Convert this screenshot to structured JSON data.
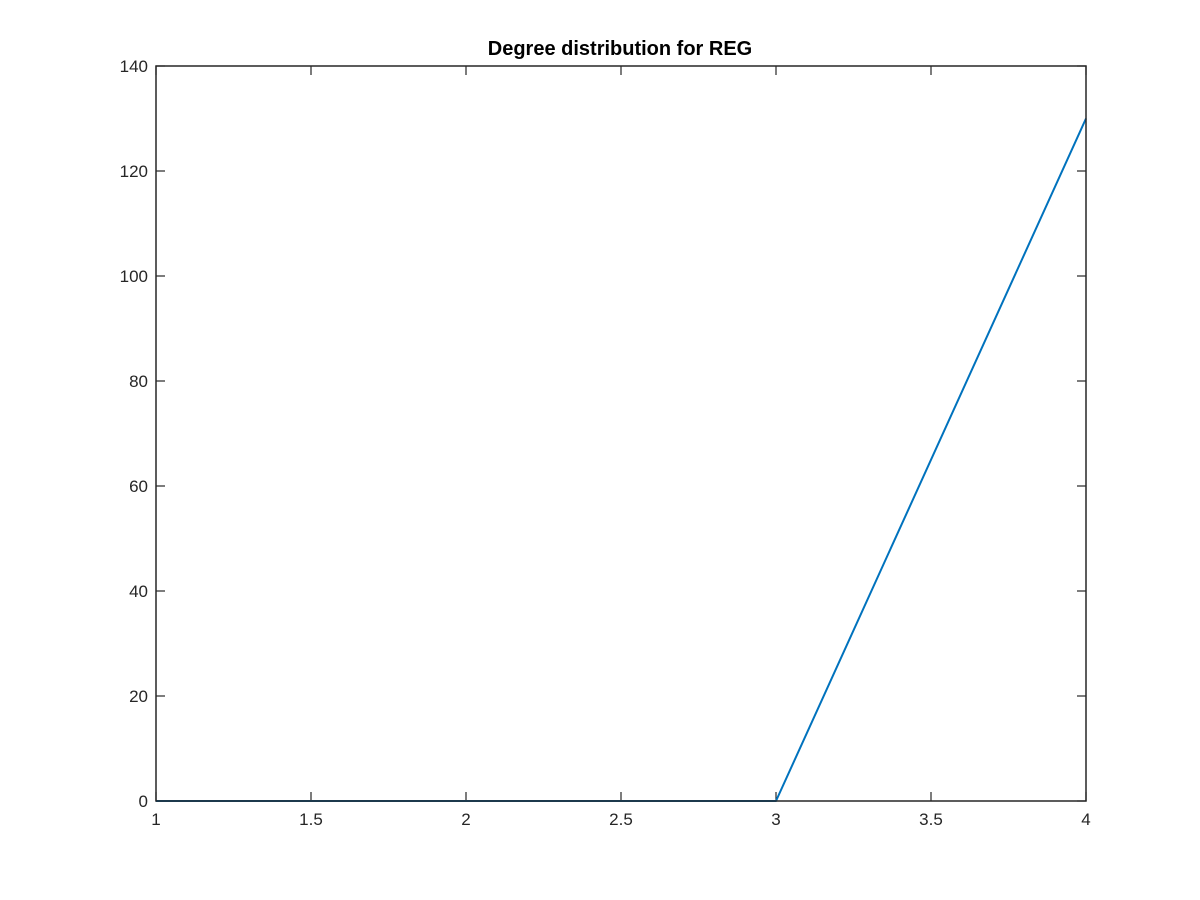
{
  "chart_data": {
    "type": "line",
    "title": "Degree distribution for REG",
    "xlabel": "",
    "ylabel": "",
    "xlim": [
      1,
      4
    ],
    "ylim": [
      0,
      140
    ],
    "x_ticks": [
      1,
      1.5,
      2,
      2.5,
      3,
      3.5,
      4
    ],
    "x_tick_labels": [
      "1",
      "1.5",
      "2",
      "2.5",
      "3",
      "3.5",
      "4"
    ],
    "y_ticks": [
      0,
      20,
      40,
      60,
      80,
      100,
      120,
      140
    ],
    "y_tick_labels": [
      "0",
      "20",
      "40",
      "60",
      "80",
      "100",
      "120",
      "140"
    ],
    "grid": false,
    "legend": "none",
    "colors": {
      "series": "#0072BD",
      "axis": "#262626"
    },
    "series": [
      {
        "x": [
          1,
          2,
          3,
          4
        ],
        "y": [
          0,
          0,
          0,
          130
        ]
      }
    ]
  }
}
